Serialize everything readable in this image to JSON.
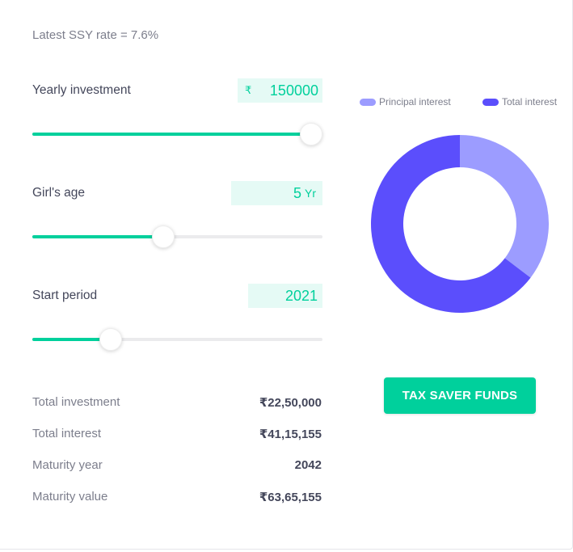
{
  "calculator": {
    "rate_text": "Latest SSY rate = 7.6%",
    "yearly_investment": {
      "label": "Yearly investment",
      "currency_symbol": "₹",
      "value": "150000",
      "slider_fraction": 0.96
    },
    "girls_age": {
      "label": "Girl's age",
      "value": "5",
      "unit": "Yr",
      "slider_fraction": 0.45
    },
    "start_period": {
      "label": "Start period",
      "value": "2021",
      "slider_fraction": 0.27
    },
    "summary": {
      "total_investment_label": "Total investment",
      "total_investment_value": "₹22,50,000",
      "total_interest_label": "Total interest",
      "total_interest_value": "₹41,15,155",
      "maturity_year_label": "Maturity year",
      "maturity_year_value": "2042",
      "maturity_value_label": "Maturity value",
      "maturity_value_value": "₹63,65,155"
    }
  },
  "chart": {
    "legend_principal": "Principal interest",
    "legend_total": "Total interest",
    "principal_color": "#9c9cff",
    "total_color": "#5b4efc"
  },
  "chart_data": {
    "type": "pie",
    "categories": [
      "Principal interest",
      "Total interest"
    ],
    "values": [
      2250000,
      4115155
    ],
    "colors": [
      "#9c9cff",
      "#5b4efc"
    ]
  },
  "cta": {
    "label": "TAX SAVER FUNDS"
  }
}
